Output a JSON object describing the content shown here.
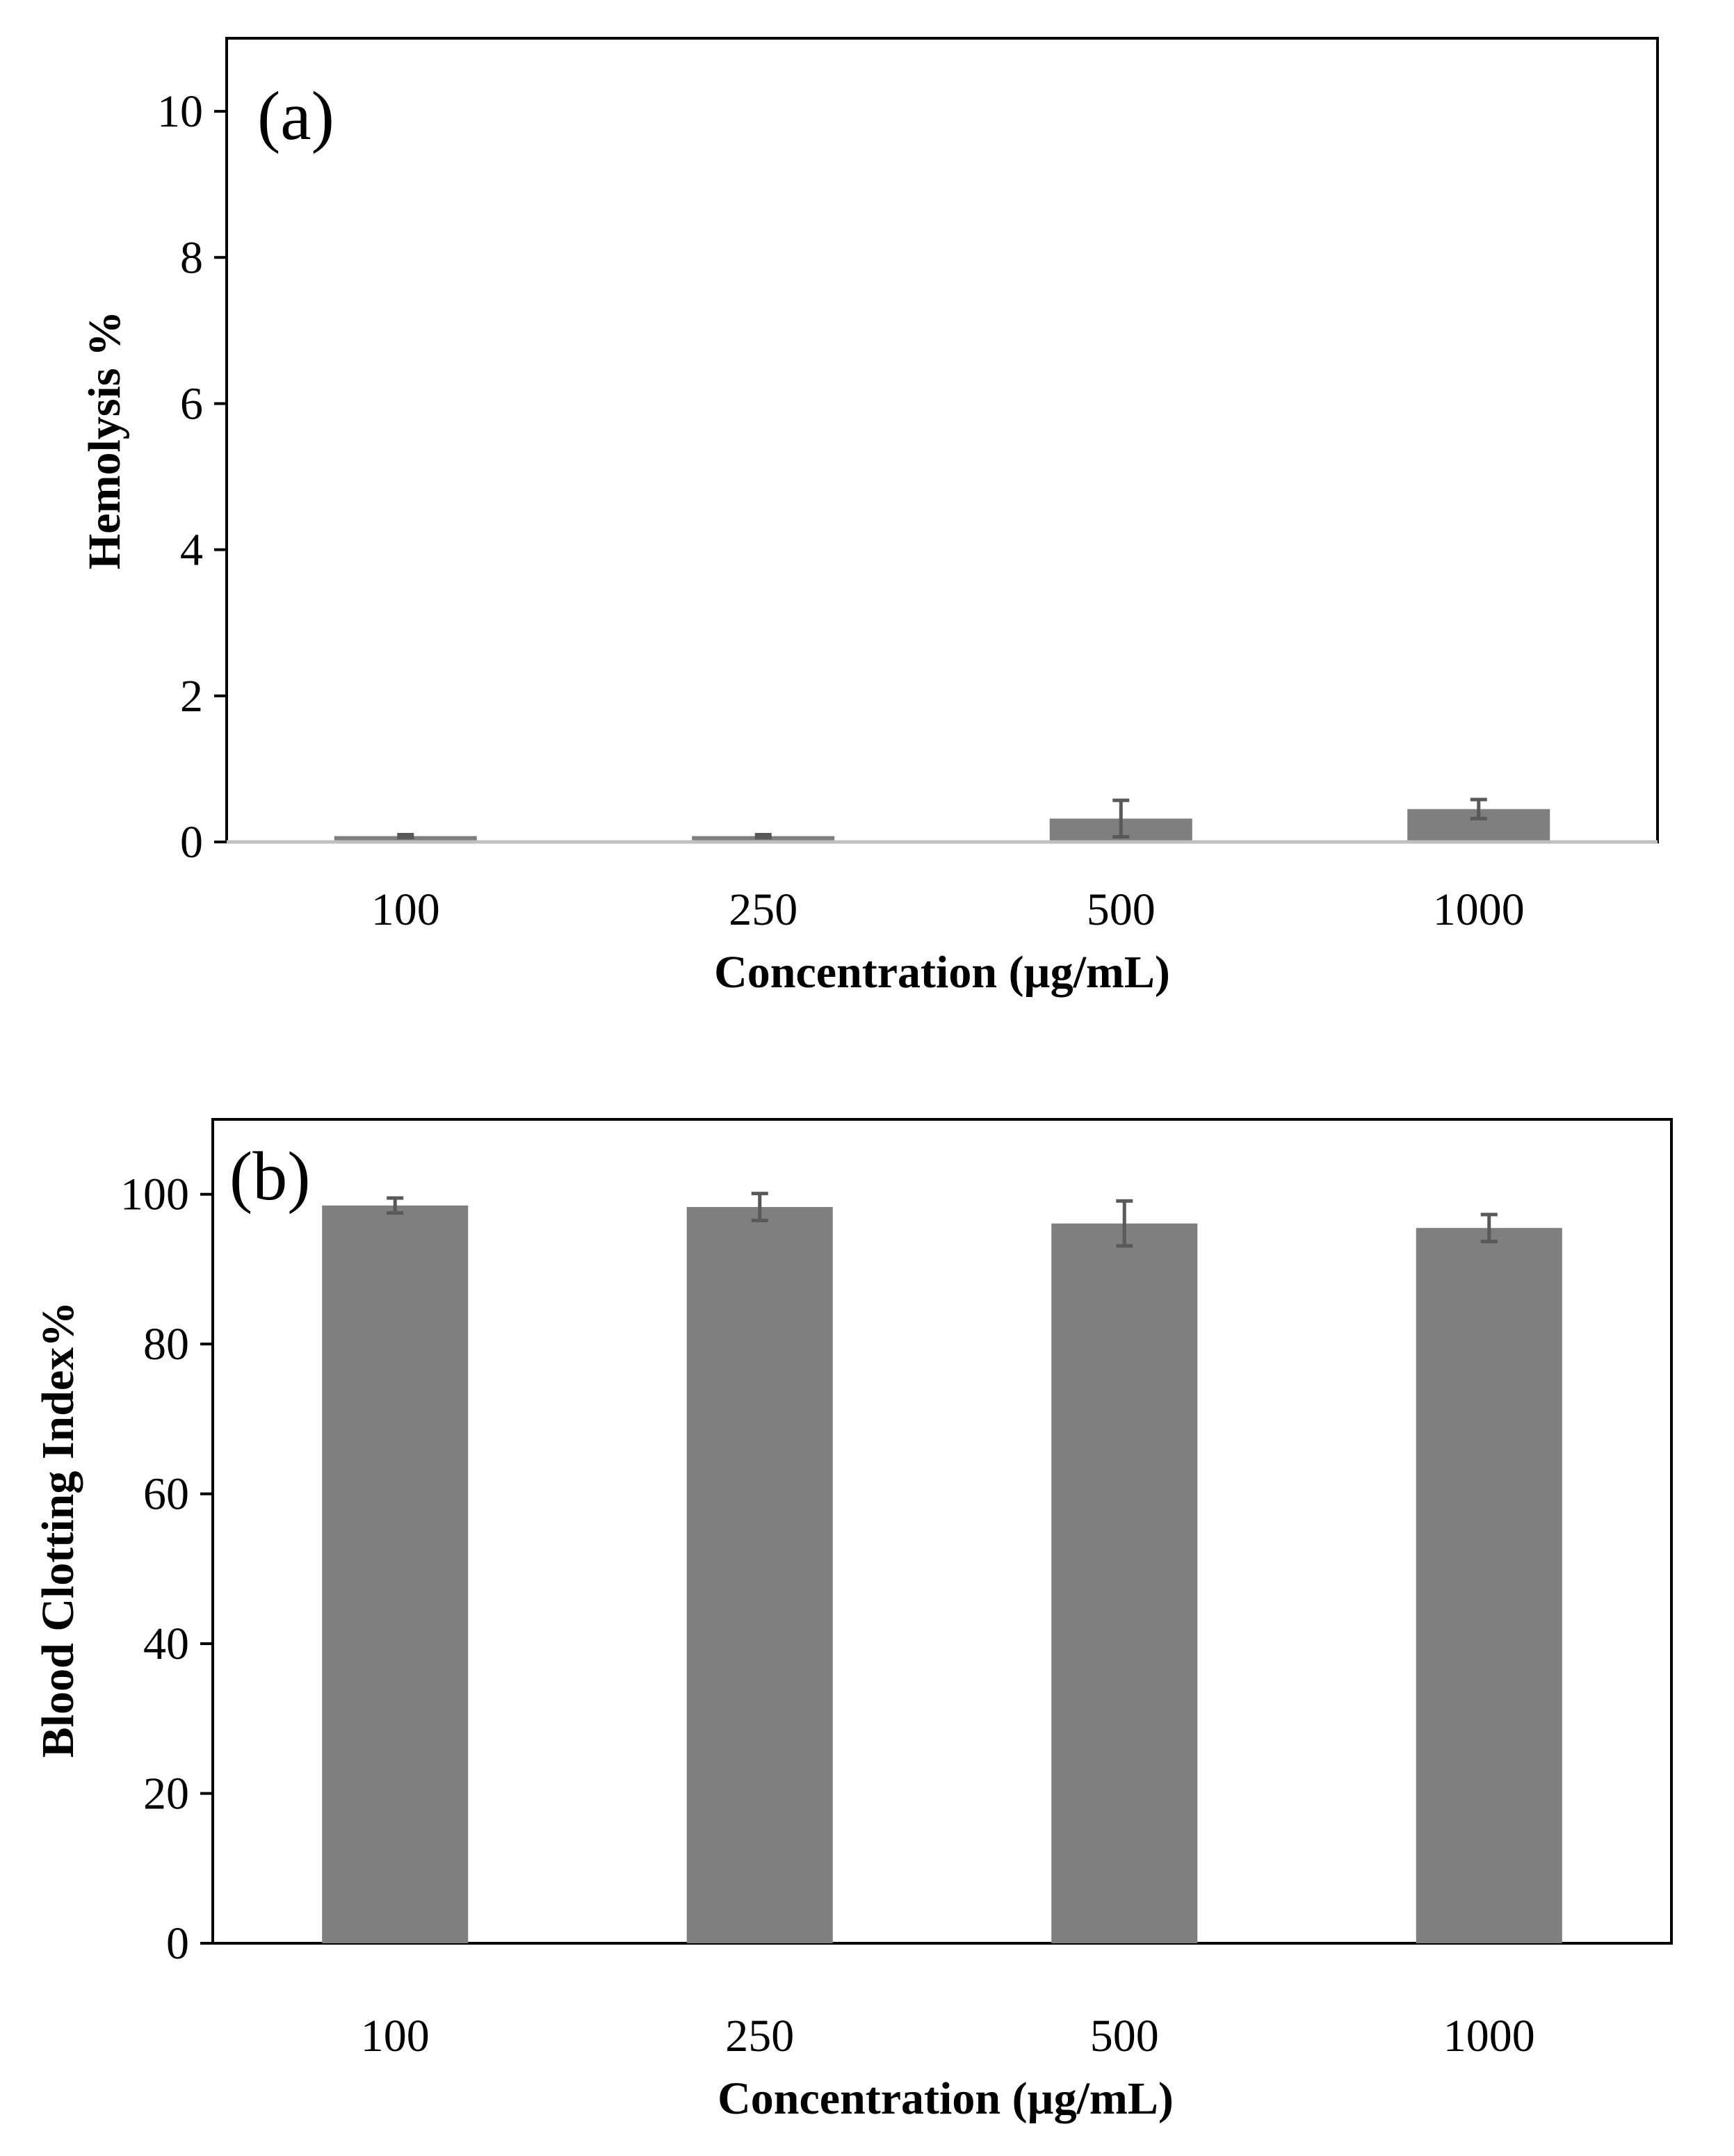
{
  "figure_colors": {
    "bar": "#7f7f7f",
    "error_bar": "#595959",
    "axis": "#000000",
    "zero_line": "#bfbfbf"
  },
  "chart_data": [
    {
      "type": "bar",
      "panel_label": "(a)",
      "categories": [
        "100",
        "250",
        "500",
        "1000"
      ],
      "values": [
        0.08,
        0.08,
        0.32,
        0.45
      ],
      "errors": [
        0.02,
        0.02,
        0.25,
        0.13
      ],
      "xlabel": "Concentration  (µg/mL)",
      "ylabel": "Hemolysis %",
      "ylim": [
        0,
        11
      ],
      "yticks": [
        0,
        2,
        4,
        6,
        8,
        10
      ],
      "ytick_labels": [
        "0",
        "2",
        "4",
        "6",
        "8",
        "10"
      ],
      "grid": false
    },
    {
      "type": "bar",
      "panel_label": "(b)",
      "categories": [
        "100",
        "250",
        "500",
        "1000"
      ],
      "values": [
        98.5,
        98.3,
        96.1,
        95.5
      ],
      "errors": [
        1.0,
        1.8,
        3.0,
        1.8
      ],
      "xlabel": "Concentration  (µg/mL)",
      "ylabel": "Blood Clotting  Index%",
      "ylim": [
        0,
        110
      ],
      "yticks": [
        0,
        20,
        40,
        60,
        80,
        100
      ],
      "ytick_labels": [
        "0",
        "20",
        "40",
        "60",
        "80",
        "100"
      ],
      "grid": false
    }
  ]
}
